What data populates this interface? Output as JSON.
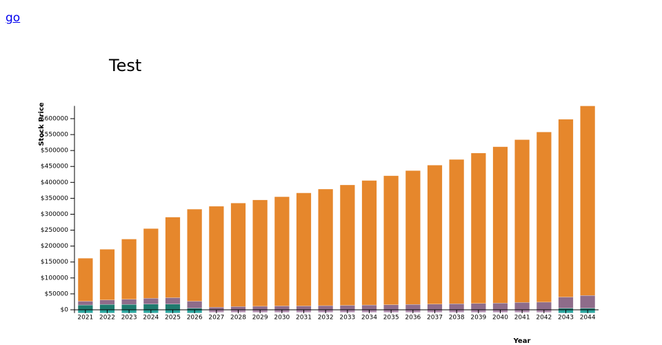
{
  "link": "go",
  "chart_data": {
    "type": "bar",
    "stacked": true,
    "title": "Test",
    "y_label": "Stock Price",
    "x_label": "Year",
    "categories": [
      "2021",
      "2022",
      "2023",
      "2024",
      "2025",
      "2026",
      "2027",
      "2028",
      "2029",
      "2030",
      "2031",
      "2032",
      "2033",
      "2034",
      "2035",
      "2036",
      "2037",
      "2038",
      "2039",
      "2040",
      "2041",
      "2042",
      "2043",
      "2044"
    ],
    "series": [
      {
        "color": "#1f7a6e",
        "values": [
          15000,
          17000,
          17000,
          18000,
          18000,
          5000,
          0,
          0,
          0,
          0,
          0,
          0,
          0,
          0,
          0,
          0,
          0,
          0,
          0,
          0,
          0,
          0,
          5000,
          5000
        ]
      },
      {
        "color": "#8e6c8a",
        "values": [
          12000,
          14000,
          16000,
          18000,
          20000,
          22000,
          8000,
          10000,
          11000,
          12000,
          12000,
          13000,
          14000,
          15000,
          16000,
          17000,
          18000,
          19000,
          20000,
          21000,
          23000,
          24000,
          35000,
          40000
        ]
      },
      {
        "color": "#e6872c",
        "values": [
          135000,
          159000,
          189000,
          219000,
          253000,
          289000,
          317000,
          325000,
          334000,
          343000,
          355000,
          366000,
          378000,
          391000,
          405000,
          420000,
          436000,
          453000,
          472000,
          491000,
          511000,
          534000,
          558000,
          595000
        ]
      },
      {
        "color": "#2ea7a0",
        "values": [
          -10000,
          -10000,
          -10000,
          -10000,
          -10000,
          -10000,
          null,
          null,
          null,
          null,
          null,
          null,
          null,
          null,
          null,
          null,
          null,
          null,
          null,
          null,
          null,
          null,
          -10000,
          -10000
        ]
      },
      {
        "color": "#b28fb0",
        "values": [
          null,
          null,
          null,
          null,
          null,
          null,
          -8000,
          -8000,
          -8000,
          -8000,
          -8000,
          -8000,
          -8000,
          -8000,
          -8000,
          -8000,
          -8000,
          -8000,
          -8000,
          -8000,
          -8000,
          -8000,
          null,
          null
        ]
      }
    ],
    "ylim": [
      -10000,
      640000
    ],
    "yticks": [
      {
        "value": 0,
        "label": "$0"
      },
      {
        "value": 50000,
        "label": "$50000"
      },
      {
        "value": 100000,
        "label": "$100000"
      },
      {
        "value": 150000,
        "label": "$150000"
      },
      {
        "value": 200000,
        "label": "$200000"
      },
      {
        "value": 250000,
        "label": "$250000"
      },
      {
        "value": 300000,
        "label": "$300000"
      },
      {
        "value": 350000,
        "label": "$350000"
      },
      {
        "value": 400000,
        "label": "$400000"
      },
      {
        "value": 450000,
        "label": "$450000"
      },
      {
        "value": 500000,
        "label": "$500000"
      },
      {
        "value": 550000,
        "label": "$550000"
      },
      {
        "value": 600000,
        "label": "$600000"
      }
    ],
    "grid": false
  }
}
